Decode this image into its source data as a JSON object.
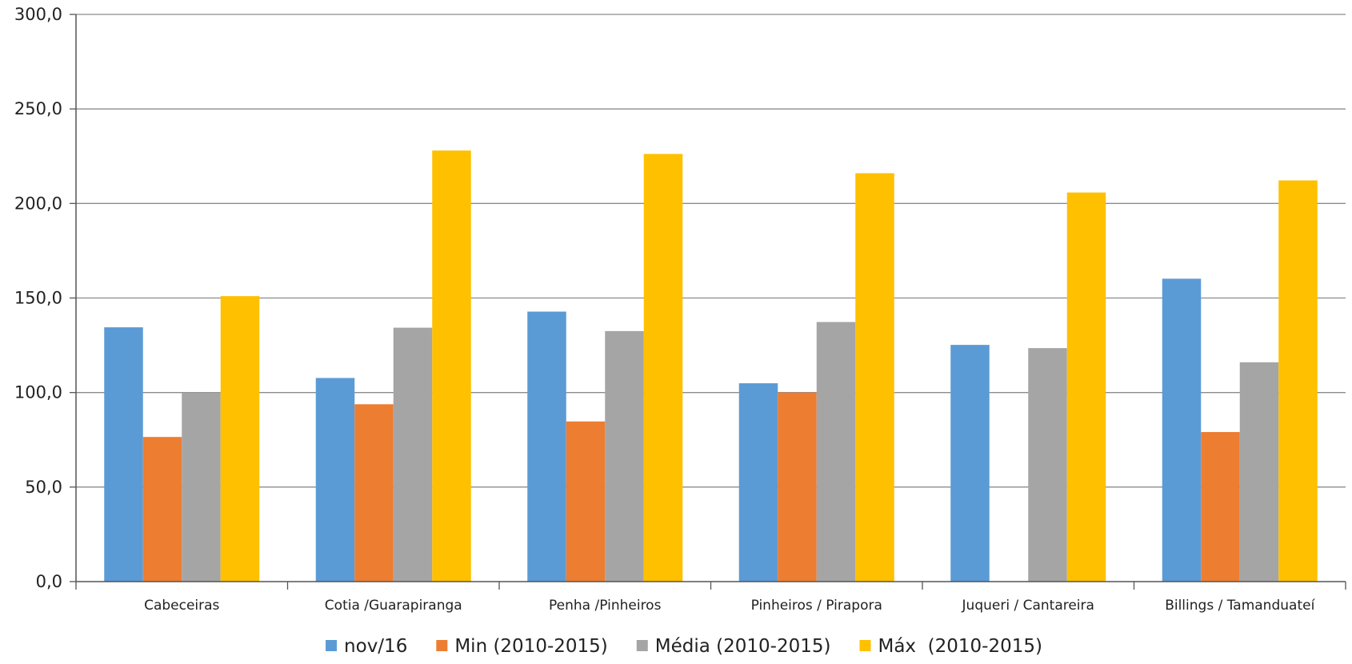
{
  "chart_data": {
    "type": "bar",
    "title": "",
    "xlabel": "",
    "ylabel": "",
    "categories": [
      "Cabeceiras",
      "Cotia /Guarapiranga",
      "Penha /Pinheiros",
      "Pinheiros / Pirapora",
      "Juqueri / Cantareira",
      "Billings / Tamanduateí"
    ],
    "series": [
      {
        "name": "nov/16",
        "color": "#5B9BD5",
        "values": [
          134.5,
          107.7,
          142.8,
          104.9,
          125.2,
          160.2
        ]
      },
      {
        "name": "Min (2010-2015)",
        "color": "#ED7D31",
        "values": [
          76.5,
          93.8,
          84.7,
          100.0,
          null,
          79.1
        ]
      },
      {
        "name": "Média (2010-2015)",
        "color": "#A5A5A5",
        "values": [
          100.0,
          134.3,
          132.5,
          137.3,
          123.5,
          116.0
        ]
      },
      {
        "name": "Máx  (2010-2015)",
        "color": "#FFC000",
        "values": [
          151.0,
          228.0,
          226.2,
          216.0,
          205.8,
          212.2
        ]
      }
    ],
    "ylim": [
      0,
      300
    ],
    "yticks": [
      0,
      50,
      100,
      150,
      200,
      250,
      300
    ],
    "ytick_labels": [
      "0,0",
      "50,0",
      "100,0",
      "150,0",
      "200,0",
      "250,0",
      "300,0"
    ],
    "grid": true,
    "legend_position": "bottom"
  }
}
